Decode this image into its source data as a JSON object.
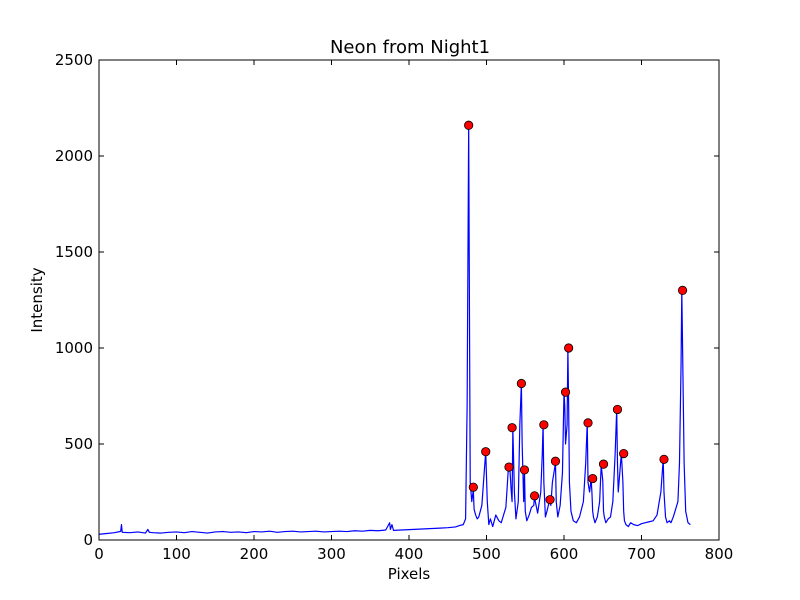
{
  "chart_data": {
    "type": "line",
    "title": "Neon from Night1",
    "xlabel": "Pixels",
    "ylabel": "Intensity",
    "xlim": [
      0,
      800
    ],
    "ylim": [
      0,
      2500
    ],
    "xticks": [
      0,
      100,
      200,
      300,
      400,
      500,
      600,
      700,
      800
    ],
    "yticks": [
      0,
      500,
      1000,
      1500,
      2000,
      2500
    ],
    "grid": false,
    "colors": {
      "line": "#0000ff",
      "peaks": "#ff0000",
      "peak_edge": "#000000"
    },
    "series": [
      {
        "type": "line",
        "x": [
          0,
          10,
          20,
          28,
          29,
          30,
          40,
          50,
          60,
          63,
          65,
          70,
          80,
          90,
          100,
          110,
          120,
          130,
          140,
          150,
          160,
          170,
          180,
          190,
          200,
          210,
          220,
          230,
          240,
          250,
          260,
          270,
          280,
          290,
          300,
          310,
          320,
          330,
          340,
          350,
          360,
          370,
          375,
          376,
          378,
          380,
          390,
          400,
          410,
          420,
          430,
          440,
          450,
          460,
          465,
          470,
          473,
          475,
          477,
          478,
          479,
          481,
          483,
          484,
          486,
          488,
          490,
          494,
          497,
          499,
          501,
          503,
          505,
          508,
          512,
          516,
          519,
          522,
          525,
          528,
          530,
          532,
          533,
          534,
          536,
          538,
          541,
          543,
          545,
          546,
          548,
          549,
          550,
          552,
          555,
          558,
          561,
          562,
          563,
          566,
          570,
          572,
          573,
          574,
          576,
          578,
          581,
          582,
          583,
          585,
          587,
          589,
          590,
          592,
          595,
          598,
          600,
          601,
          602,
          604,
          605,
          606,
          607,
          609,
          612,
          616,
          620,
          625,
          628,
          630,
          631,
          633,
          635,
          636,
          637,
          638,
          640,
          643,
          646,
          648,
          650,
          651,
          652,
          654,
          657,
          660,
          663,
          666,
          668,
          669,
          670,
          672,
          674,
          676,
          677,
          678,
          680,
          683,
          686,
          690,
          695,
          700,
          705,
          710,
          715,
          720,
          725,
          728,
          729,
          731,
          733,
          736,
          738,
          741,
          744,
          747,
          749,
          751,
          752,
          753,
          755,
          757,
          760,
          763
        ],
        "y": [
          30,
          34,
          38,
          45,
          80,
          40,
          38,
          42,
          36,
          55,
          40,
          38,
          36,
          40,
          42,
          38,
          44,
          40,
          36,
          42,
          44,
          40,
          42,
          38,
          44,
          42,
          46,
          40,
          44,
          46,
          42,
          44,
          46,
          42,
          44,
          46,
          44,
          48,
          46,
          50,
          48,
          52,
          90,
          55,
          80,
          50,
          52,
          54,
          56,
          58,
          60,
          62,
          64,
          68,
          75,
          80,
          110,
          700,
          2160,
          1200,
          300,
          200,
          260,
          160,
          130,
          110,
          120,
          180,
          350,
          460,
          200,
          80,
          110,
          70,
          130,
          100,
          90,
          130,
          170,
          360,
          380,
          250,
          200,
          580,
          250,
          110,
          200,
          600,
          815,
          500,
          200,
          360,
          150,
          100,
          130,
          170,
          180,
          230,
          200,
          140,
          250,
          450,
          600,
          300,
          120,
          150,
          200,
          210,
          180,
          300,
          350,
          400,
          200,
          120,
          180,
          350,
          770,
          700,
          500,
          600,
          1000,
          700,
          300,
          150,
          100,
          90,
          120,
          200,
          400,
          610,
          300,
          250,
          320,
          250,
          150,
          120,
          90,
          120,
          200,
          390,
          310,
          150,
          120,
          90,
          110,
          120,
          200,
          450,
          680,
          400,
          250,
          350,
          450,
          300,
          150,
          100,
          80,
          70,
          90,
          80,
          75,
          85,
          90,
          95,
          100,
          130,
          250,
          420,
          250,
          120,
          90,
          100,
          90,
          120,
          160,
          200,
          400,
          900,
          1300,
          1000,
          400,
          150,
          90,
          80
        ]
      }
    ],
    "peaks": {
      "x": [
        477,
        483,
        499,
        529,
        533,
        545,
        549,
        562,
        574,
        582,
        589,
        602,
        606,
        631,
        637,
        651,
        669,
        677,
        729,
        753
      ],
      "y": [
        2160,
        275,
        460,
        380,
        585,
        815,
        365,
        230,
        600,
        210,
        410,
        770,
        1000,
        610,
        320,
        395,
        680,
        450,
        420,
        1300
      ]
    }
  }
}
